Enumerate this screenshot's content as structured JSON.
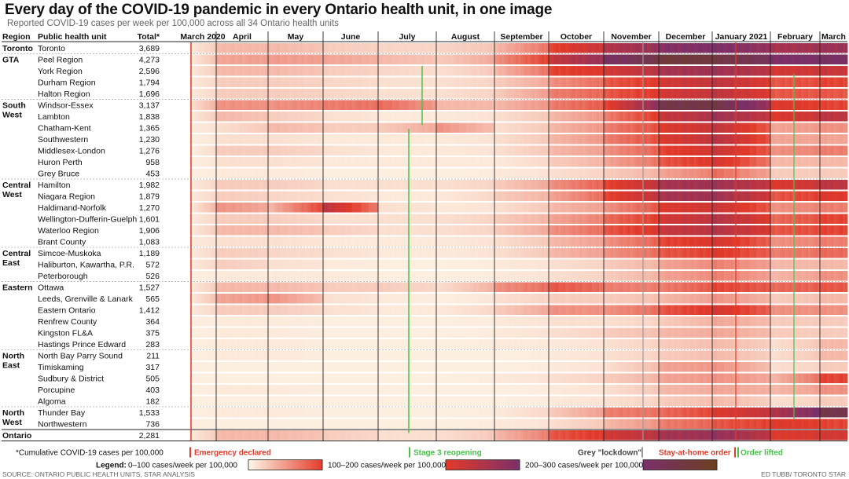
{
  "chart_data": {
    "type": "heatmap",
    "title": "Every day of the COVID-19 pandemic in every Ontario health unit, in one image",
    "subtitle": "Reported COVID-19 cases per week per 100,000 across all 34 Ontario health units",
    "columns": {
      "region": "Region",
      "unit": "Public health unit",
      "total": "Total*"
    },
    "months": [
      "March 2020",
      "April",
      "May",
      "June",
      "July",
      "August",
      "September",
      "October",
      "November",
      "December",
      "January 2021",
      "February",
      "March"
    ],
    "regions": [
      {
        "name": "Toronto",
        "units": [
          {
            "name": "Toronto",
            "total": "3,689",
            "intensity": [
              0.05,
              0.3,
              0.3,
              0.2,
              0.15,
              0.15,
              0.3,
              0.9,
              1.4,
              1.8,
              1.9,
              1.5,
              1.6
            ]
          }
        ]
      },
      {
        "name": "GTA",
        "units": [
          {
            "name": "Peel Region",
            "total": "4,273",
            "intensity": [
              0.05,
              0.4,
              0.45,
              0.4,
              0.3,
              0.2,
              0.5,
              1.2,
              2.0,
              2.5,
              2.4,
              1.9,
              2.0
            ]
          },
          {
            "name": "York Region",
            "total": "2,596",
            "intensity": [
              0.05,
              0.3,
              0.3,
              0.2,
              0.15,
              0.1,
              0.3,
              0.9,
              1.1,
              1.5,
              1.6,
              1.1,
              1.2
            ]
          },
          {
            "name": "Durham Region",
            "total": "1,794",
            "intensity": [
              0.05,
              0.2,
              0.2,
              0.15,
              0.1,
              0.1,
              0.2,
              0.5,
              0.8,
              1.1,
              1.3,
              0.8,
              0.9
            ]
          },
          {
            "name": "Halton Region",
            "total": "1,696",
            "intensity": [
              0.05,
              0.2,
              0.2,
              0.15,
              0.1,
              0.1,
              0.2,
              0.6,
              0.8,
              1.1,
              1.3,
              0.8,
              0.8
            ]
          }
        ]
      },
      {
        "name": "South West",
        "units": [
          {
            "name": "Windsor-Essex",
            "total": "3,137",
            "intensity": [
              0.1,
              0.5,
              0.5,
              0.6,
              0.7,
              0.3,
              0.3,
              0.6,
              0.9,
              2.3,
              2.4,
              1.0,
              0.9
            ]
          },
          {
            "name": "Lambton",
            "total": "1,838",
            "intensity": [
              0.05,
              0.3,
              0.2,
              0.1,
              0.05,
              0.05,
              0.1,
              0.3,
              0.6,
              1.2,
              1.6,
              1.0,
              1.3
            ]
          },
          {
            "name": "Chatham-Kent",
            "total": "1,365",
            "intensity": [
              0.05,
              0.1,
              0.3,
              0.2,
              0.2,
              0.5,
              0.1,
              0.3,
              0.6,
              1.0,
              1.3,
              0.4,
              0.5
            ]
          },
          {
            "name": "Southwestern",
            "total": "1,230",
            "intensity": [
              0.02,
              0.1,
              0.1,
              0.05,
              0.05,
              0.05,
              0.1,
              0.3,
              0.6,
              1.0,
              1.4,
              0.4,
              0.4
            ]
          },
          {
            "name": "Middlesex-London",
            "total": "1,276",
            "intensity": [
              0.02,
              0.2,
              0.2,
              0.1,
              0.05,
              0.05,
              0.1,
              0.3,
              0.5,
              0.9,
              1.2,
              0.5,
              0.6
            ]
          },
          {
            "name": "Huron Perth",
            "total": "958",
            "intensity": [
              0.02,
              0.1,
              0.1,
              0.05,
              0.05,
              0.05,
              0.05,
              0.2,
              0.4,
              0.8,
              1.1,
              0.3,
              0.3
            ]
          },
          {
            "name": "Grey Bruce",
            "total": "453",
            "intensity": [
              0.02,
              0.05,
              0.05,
              0.02,
              0.02,
              0.02,
              0.05,
              0.1,
              0.2,
              0.4,
              0.7,
              0.2,
              0.2
            ]
          }
        ]
      },
      {
        "name": "Central West",
        "units": [
          {
            "name": "Hamilton",
            "total": "1,982",
            "intensity": [
              0.05,
              0.2,
              0.2,
              0.1,
              0.1,
              0.1,
              0.2,
              0.5,
              0.9,
              1.5,
              1.6,
              1.0,
              1.3
            ]
          },
          {
            "name": "Niagara Region",
            "total": "1,879",
            "intensity": [
              0.05,
              0.2,
              0.15,
              0.1,
              0.05,
              0.05,
              0.2,
              0.4,
              0.9,
              1.5,
              1.6,
              0.8,
              1.0
            ]
          },
          {
            "name": "Haldimand-Norfolk",
            "total": "1,270",
            "intensity": [
              0.05,
              0.5,
              0.3,
              1.3,
              0.1,
              0.05,
              0.1,
              0.3,
              0.5,
              1.0,
              1.2,
              0.5,
              0.6
            ]
          },
          {
            "name": "Wellington-Dufferin-Guelph",
            "total": "1,601",
            "intensity": [
              0.05,
              0.2,
              0.2,
              0.1,
              0.1,
              0.1,
              0.2,
              0.4,
              0.7,
              1.1,
              1.4,
              0.7,
              0.9
            ]
          },
          {
            "name": "Waterloo Region",
            "total": "1,906",
            "intensity": [
              0.05,
              0.3,
              0.3,
              0.2,
              0.1,
              0.1,
              0.2,
              0.5,
              0.8,
              1.2,
              1.4,
              0.8,
              0.9
            ]
          },
          {
            "name": "Brant County",
            "total": "1,083",
            "intensity": [
              0.05,
              0.1,
              0.1,
              0.05,
              0.05,
              0.05,
              0.1,
              0.3,
              0.5,
              0.9,
              1.1,
              0.5,
              0.6
            ]
          }
        ]
      },
      {
        "name": "Central East",
        "units": [
          {
            "name": "Simcoe-Muskoka",
            "total": "1,189",
            "intensity": [
              0.05,
              0.2,
              0.15,
              0.1,
              0.05,
              0.05,
              0.1,
              0.3,
              0.5,
              0.8,
              1.0,
              0.6,
              0.7
            ]
          },
          {
            "name": "Haliburton, Kawartha, P.R.",
            "total": "572",
            "intensity": [
              0.05,
              0.2,
              0.1,
              0.05,
              0.02,
              0.02,
              0.05,
              0.1,
              0.2,
              0.4,
              0.6,
              0.3,
              0.3
            ]
          },
          {
            "name": "Peterborough",
            "total": "526",
            "intensity": [
              0.02,
              0.05,
              0.05,
              0.05,
              0.02,
              0.02,
              0.05,
              0.1,
              0.2,
              0.4,
              0.6,
              0.3,
              0.5
            ]
          }
        ]
      },
      {
        "name": "Eastern",
        "units": [
          {
            "name": "Ottawa",
            "total": "1,527",
            "intensity": [
              0.05,
              0.3,
              0.3,
              0.2,
              0.2,
              0.1,
              0.5,
              0.8,
              0.6,
              0.6,
              0.9,
              0.7,
              0.8
            ]
          },
          {
            "name": "Leeds, Grenville & Lanark",
            "total": "565",
            "intensity": [
              0.05,
              0.4,
              0.5,
              0.1,
              0.05,
              0.02,
              0.1,
              0.2,
              0.2,
              0.3,
              0.5,
              0.2,
              0.3
            ]
          },
          {
            "name": "Eastern Ontario",
            "total": "1,412",
            "intensity": [
              0.05,
              0.2,
              0.2,
              0.1,
              0.05,
              0.05,
              0.2,
              0.5,
              0.5,
              0.8,
              1.1,
              0.5,
              0.5
            ]
          },
          {
            "name": "Renfrew County",
            "total": "364",
            "intensity": [
              0.02,
              0.05,
              0.05,
              0.02,
              0.02,
              0.02,
              0.05,
              0.1,
              0.1,
              0.2,
              0.4,
              0.2,
              0.2
            ]
          },
          {
            "name": "Kingston FL&A",
            "total": "375",
            "intensity": [
              0.02,
              0.05,
              0.05,
              0.02,
              0.02,
              0.02,
              0.05,
              0.1,
              0.2,
              0.3,
              0.4,
              0.2,
              0.2
            ]
          },
          {
            "name": "Hastings Prince Edward",
            "total": "283",
            "intensity": [
              0.02,
              0.05,
              0.05,
              0.02,
              0.02,
              0.02,
              0.05,
              0.05,
              0.1,
              0.2,
              0.3,
              0.1,
              0.3
            ]
          }
        ]
      },
      {
        "name": "North East",
        "units": [
          {
            "name": "North Bay Parry Sound",
            "total": "211",
            "intensity": [
              0.02,
              0.05,
              0.05,
              0.02,
              0.02,
              0.02,
              0.02,
              0.05,
              0.1,
              0.2,
              0.3,
              0.1,
              0.3
            ]
          },
          {
            "name": "Timiskaming",
            "total": "317",
            "intensity": [
              0.02,
              0.02,
              0.02,
              0.02,
              0.02,
              0.02,
              0.02,
              0.05,
              0.1,
              0.4,
              0.5,
              0.1,
              0.2
            ]
          },
          {
            "name": "Sudbury & District",
            "total": "505",
            "intensity": [
              0.02,
              0.02,
              0.02,
              0.02,
              0.02,
              0.02,
              0.05,
              0.1,
              0.2,
              0.4,
              0.5,
              0.3,
              0.9
            ]
          },
          {
            "name": "Porcupine",
            "total": "403",
            "intensity": [
              0.02,
              0.05,
              0.05,
              0.02,
              0.02,
              0.02,
              0.02,
              0.05,
              0.1,
              0.3,
              0.4,
              0.3,
              0.5
            ]
          },
          {
            "name": "Algoma",
            "total": "182",
            "intensity": [
              0.02,
              0.02,
              0.02,
              0.02,
              0.02,
              0.02,
              0.02,
              0.05,
              0.1,
              0.2,
              0.3,
              0.1,
              0.2
            ]
          }
        ]
      },
      {
        "name": "North West",
        "units": [
          {
            "name": "Thunder Bay",
            "total": "1,533",
            "intensity": [
              0.02,
              0.05,
              0.05,
              0.02,
              0.02,
              0.02,
              0.05,
              0.2,
              0.6,
              0.7,
              1.0,
              1.4,
              2.3
            ]
          },
          {
            "name": "Northwestern",
            "total": "736",
            "intensity": [
              0.02,
              0.02,
              0.02,
              0.02,
              0.02,
              0.02,
              0.05,
              0.1,
              0.3,
              0.6,
              0.8,
              1.0,
              0.9
            ]
          }
        ]
      },
      {
        "name": "Ontario",
        "units": [
          {
            "name": "",
            "total": "2,281",
            "intensity": [
              0.05,
              0.3,
              0.3,
              0.2,
              0.1,
              0.1,
              0.3,
              0.8,
              1.1,
              1.5,
              1.7,
              1.0,
              1.1
            ]
          }
        ]
      }
    ],
    "scale_note": "intensity values: 1 = 100, 2 = 200, 3 = 300 cases/week per 100,000 (estimated monthly)",
    "footnote": "*Cumulative COVID-19 cases per 100,000",
    "annotations": {
      "emergency": "Emergency declared",
      "stage3": "Stage 3 reopening",
      "lockdown": "Grey \"lockdown\"",
      "stay_home": "Stay-at-home order",
      "order_lifted": "Order lifted"
    },
    "legend": {
      "title": "Legend:",
      "low": "0–100 cases/week per 100,000",
      "mid": "100–200 cases/week per 100,000",
      "high": "200–300 cases/week per 100,000"
    },
    "source": "SOURCE: ONTARIO PUBLIC HEALTH UNITS, STAR ANALYSIS",
    "credit": "ED TUBB/ TORONTO STAR"
  },
  "colors": {
    "low_start": "#fdf3e4",
    "low_end": "#e23a2a",
    "mid_end": "#7a2f6a",
    "high_end": "#6b4020",
    "emergency": "#e23a2a",
    "stage3": "#49c24a",
    "lockdown": "#999999",
    "stay_home": "#e23a2a"
  }
}
